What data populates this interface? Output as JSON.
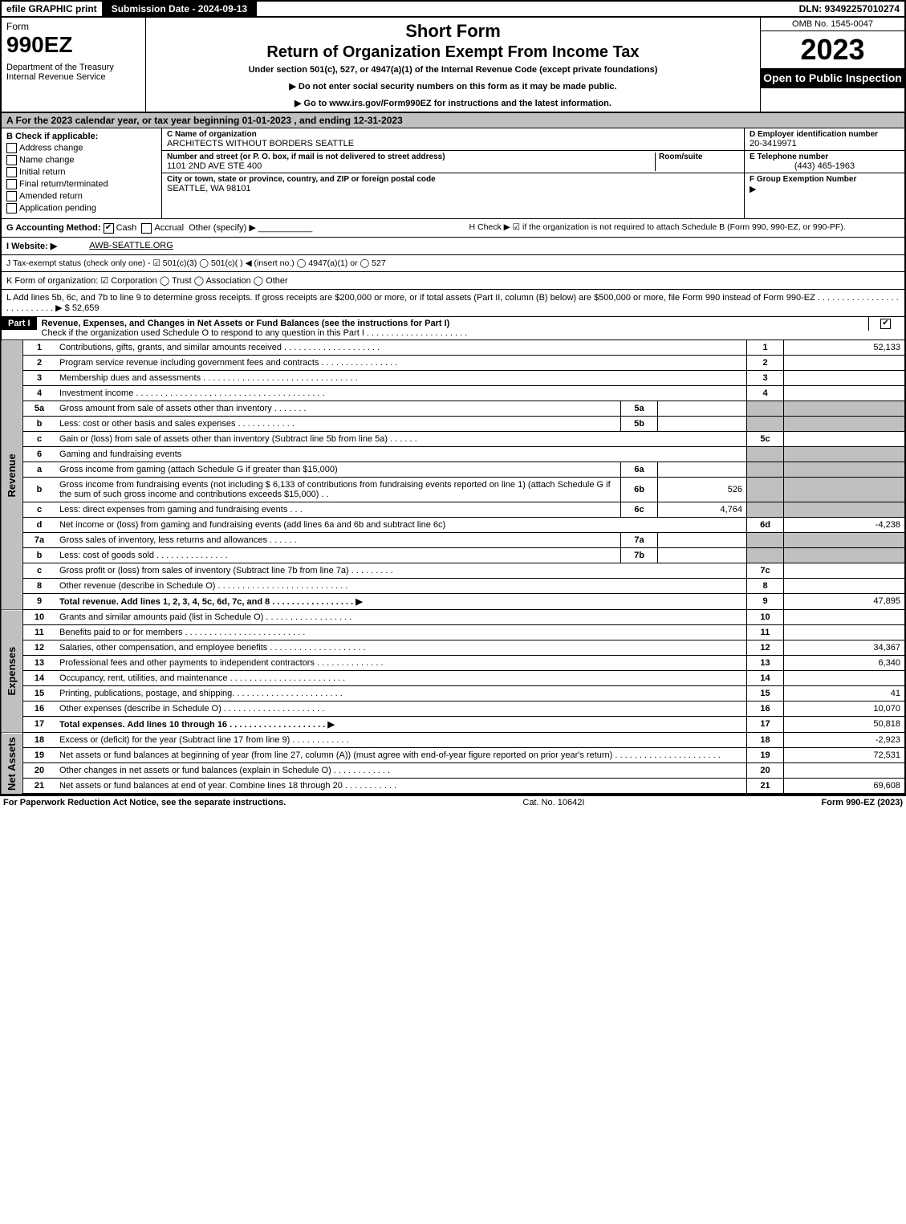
{
  "topbar": {
    "efile": "efile GRAPHIC print",
    "submission": "Submission Date - 2024-09-13",
    "dln": "DLN: 93492257010274"
  },
  "header": {
    "form": "Form",
    "formnum": "990EZ",
    "dept": "Department of the Treasury\nInternal Revenue Service",
    "title1": "Short Form",
    "title2": "Return of Organization Exempt From Income Tax",
    "sub": "Under section 501(c), 527, or 4947(a)(1) of the Internal Revenue Code (except private foundations)",
    "sub2a": "Do not enter social security numbers on this form as it may be made public.",
    "sub2b": "Go to www.irs.gov/Form990EZ for instructions and the latest information.",
    "omb": "OMB No. 1545-0047",
    "year": "2023",
    "inspect": "Open to Public Inspection"
  },
  "lineA": "A  For the 2023 calendar year, or tax year beginning 01-01-2023 , and ending 12-31-2023",
  "sectionB": {
    "label": "B  Check if applicable:",
    "items": [
      "Address change",
      "Name change",
      "Initial return",
      "Final return/terminated",
      "Amended return",
      "Application pending"
    ]
  },
  "sectionC": {
    "nameLbl": "C Name of organization",
    "name": "ARCHITECTS WITHOUT BORDERS SEATTLE",
    "addrLbl": "Number and street (or P. O. box, if mail is not delivered to street address)",
    "roomLbl": "Room/suite",
    "addr": "1101 2ND AVE STE 400",
    "cityLbl": "City or town, state or province, country, and ZIP or foreign postal code",
    "city": "SEATTLE, WA  98101"
  },
  "sectionD": {
    "lbl": "D Employer identification number",
    "val": "20-3419971"
  },
  "sectionE": {
    "lbl": "E Telephone number",
    "val": "(443) 465-1963"
  },
  "sectionF": {
    "lbl": "F Group Exemption Number"
  },
  "lineG": "G Accounting Method:",
  "lineG_cash": "Cash",
  "lineG_accrual": "Accrual",
  "lineG_other": "Other (specify)",
  "lineH": "H  Check ▶  ☑  if the organization is not required to attach Schedule B (Form 990, 990-EZ, or 990-PF).",
  "lineI_lbl": "I Website: ▶",
  "lineI_val": "AWB-SEATTLE.ORG",
  "lineJ": "J Tax-exempt status (check only one) -  ☑ 501(c)(3)  ◯ 501(c)(  ) ◀ (insert no.)  ◯ 4947(a)(1) or  ◯ 527",
  "lineK": "K Form of organization:   ☑ Corporation   ◯ Trust   ◯ Association   ◯ Other",
  "lineL": "L Add lines 5b, 6c, and 7b to line 9 to determine gross receipts. If gross receipts are $200,000 or more, or if total assets (Part II, column (B) below) are $500,000 or more, file Form 990 instead of Form 990-EZ  . . . . . . . . . . . . . . . . . . . . . . . . . . .  ▶ $ 52,659",
  "partI": {
    "label": "Part I",
    "title": "Revenue, Expenses, and Changes in Net Assets or Fund Balances (see the instructions for Part I)",
    "sub": "Check if the organization used Schedule O to respond to any question in this Part I . . . . . . . . . . . . . . . . . . . . ."
  },
  "sidelabels": {
    "rev": "Revenue",
    "exp": "Expenses",
    "net": "Net Assets"
  },
  "rows": [
    {
      "n": "1",
      "d": "Contributions, gifts, grants, and similar amounts received . . . . . . . . . . . . . . . . . . . .",
      "ln": "1",
      "amt": "52,133"
    },
    {
      "n": "2",
      "d": "Program service revenue including government fees and contracts . . . . . . . . . . . . . . . .",
      "ln": "2",
      "amt": ""
    },
    {
      "n": "3",
      "d": "Membership dues and assessments . . . . . . . . . . . . . . . . . . . . . . . . . . . . . . . .",
      "ln": "3",
      "amt": ""
    },
    {
      "n": "4",
      "d": "Investment income . . . . . . . . . . . . . . . . . . . . . . . . . . . . . . . . . . . . . . .",
      "ln": "4",
      "amt": ""
    },
    {
      "n": "5a",
      "d": "Gross amount from sale of assets other than inventory . . . . . . .",
      "sub": "5a",
      "subval": "",
      "shade": true
    },
    {
      "n": "b",
      "d": "Less: cost or other basis and sales expenses . . . . . . . . . . . .",
      "sub": "5b",
      "subval": "",
      "shade": true
    },
    {
      "n": "c",
      "d": "Gain or (loss) from sale of assets other than inventory (Subtract line 5b from line 5a) . . . . . .",
      "ln": "5c",
      "amt": ""
    },
    {
      "n": "6",
      "d": "Gaming and fundraising events",
      "shade": true
    },
    {
      "n": "a",
      "d": "Gross income from gaming (attach Schedule G if greater than $15,000)",
      "sub": "6a",
      "subval": "",
      "shade": true
    },
    {
      "n": "b",
      "d": "Gross income from fundraising events (not including $  6,133   of contributions from fundraising events reported on line 1) (attach Schedule G if the sum of such gross income and contributions exceeds $15,000)    . .",
      "sub": "6b",
      "subval": "526",
      "shade": true
    },
    {
      "n": "c",
      "d": "Less: direct expenses from gaming and fundraising events    . . .",
      "sub": "6c",
      "subval": "4,764",
      "shade": true
    },
    {
      "n": "d",
      "d": "Net income or (loss) from gaming and fundraising events (add lines 6a and 6b and subtract line 6c)",
      "ln": "6d",
      "amt": "-4,238"
    },
    {
      "n": "7a",
      "d": "Gross sales of inventory, less returns and allowances . . . . . .",
      "sub": "7a",
      "subval": "",
      "shade": true
    },
    {
      "n": "b",
      "d": "Less: cost of goods sold     . . . . . . . . . . . . . . .",
      "sub": "7b",
      "subval": "",
      "shade": true
    },
    {
      "n": "c",
      "d": "Gross profit or (loss) from sales of inventory (Subtract line 7b from line 7a) . . . . . . . . .",
      "ln": "7c",
      "amt": ""
    },
    {
      "n": "8",
      "d": "Other revenue (describe in Schedule O) . . . . . . . . . . . . . . . . . . . . . . . . . . .",
      "ln": "8",
      "amt": ""
    },
    {
      "n": "9",
      "d": "Total revenue. Add lines 1, 2, 3, 4, 5c, 6d, 7c, and 8  . . . . . . . . . . . . . . . . .  ▶",
      "ln": "9",
      "amt": "47,895",
      "bold": true
    }
  ],
  "rows_exp": [
    {
      "n": "10",
      "d": "Grants and similar amounts paid (list in Schedule O) . . . . . . . . . . . . . . . . . .",
      "ln": "10",
      "amt": ""
    },
    {
      "n": "11",
      "d": "Benefits paid to or for members     . . . . . . . . . . . . . . . . . . . . . . . . .",
      "ln": "11",
      "amt": ""
    },
    {
      "n": "12",
      "d": "Salaries, other compensation, and employee benefits . . . . . . . . . . . . . . . . . . . .",
      "ln": "12",
      "amt": "34,367"
    },
    {
      "n": "13",
      "d": "Professional fees and other payments to independent contractors . . . . . . . . . . . . . .",
      "ln": "13",
      "amt": "6,340"
    },
    {
      "n": "14",
      "d": "Occupancy, rent, utilities, and maintenance . . . . . . . . . . . . . . . . . . . . . . . .",
      "ln": "14",
      "amt": ""
    },
    {
      "n": "15",
      "d": "Printing, publications, postage, and shipping. . . . . . . . . . . . . . . . . . . . . . .",
      "ln": "15",
      "amt": "41"
    },
    {
      "n": "16",
      "d": "Other expenses (describe in Schedule O)     . . . . . . . . . . . . . . . . . . . . .",
      "ln": "16",
      "amt": "10,070"
    },
    {
      "n": "17",
      "d": "Total expenses. Add lines 10 through 16     . . . . . . . . . . . . . . . . . . . .  ▶",
      "ln": "17",
      "amt": "50,818",
      "bold": true
    }
  ],
  "rows_net": [
    {
      "n": "18",
      "d": "Excess or (deficit) for the year (Subtract line 17 from line 9)      . . . . . . . . . . . .",
      "ln": "18",
      "amt": "-2,923"
    },
    {
      "n": "19",
      "d": "Net assets or fund balances at beginning of year (from line 27, column (A)) (must agree with end-of-year figure reported on prior year's return) . . . . . . . . . . . . . . . . . . . . . .",
      "ln": "19",
      "amt": "72,531"
    },
    {
      "n": "20",
      "d": "Other changes in net assets or fund balances (explain in Schedule O) . . . . . . . . . . . .",
      "ln": "20",
      "amt": ""
    },
    {
      "n": "21",
      "d": "Net assets or fund balances at end of year. Combine lines 18 through 20 . . . . . . . . . . .",
      "ln": "21",
      "amt": "69,608"
    }
  ],
  "footer": {
    "left": "For Paperwork Reduction Act Notice, see the separate instructions.",
    "mid": "Cat. No. 10642I",
    "right": "Form 990-EZ (2023)"
  }
}
